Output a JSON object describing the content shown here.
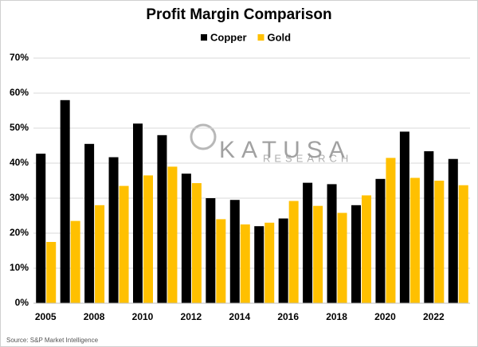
{
  "chart_data": {
    "type": "bar",
    "title": "Profit Margin Comparison",
    "categories": [
      "2005",
      null,
      "2008",
      null,
      "2010",
      null,
      "2012",
      null,
      "2014",
      null,
      "2016",
      null,
      "2018",
      null,
      "2020",
      null,
      "2022",
      null
    ],
    "series": [
      {
        "name": "Copper",
        "color": "#000000",
        "values": [
          42.7,
          58,
          45.5,
          41.7,
          51.3,
          48,
          37,
          30,
          29.5,
          22,
          24.2,
          34.4,
          34,
          28,
          35.5,
          49,
          43.4,
          41.2
        ]
      },
      {
        "name": "Gold",
        "color": "#ffc000",
        "values": [
          17.5,
          23.5,
          28,
          33.5,
          36.5,
          39,
          34.3,
          24,
          22.5,
          23,
          29.2,
          27.8,
          25.8,
          30.8,
          41.5,
          35.8,
          35,
          33.7
        ]
      }
    ],
    "ylim": [
      0,
      70
    ],
    "yticks": [
      {
        "value": 0,
        "label": "0%"
      },
      {
        "value": 10,
        "label": "10%"
      },
      {
        "value": 20,
        "label": "20%"
      },
      {
        "value": 30,
        "label": "30%"
      },
      {
        "value": 40,
        "label": "40%"
      },
      {
        "value": 50,
        "label": "50%"
      },
      {
        "value": 60,
        "label": "60%"
      },
      {
        "value": 70,
        "label": "70%"
      }
    ],
    "grid": true,
    "legend": "top",
    "watermark": {
      "brand": "KATUSA",
      "sub": "RESEARCH"
    },
    "source": "Source: S&P Market Intelligence"
  }
}
